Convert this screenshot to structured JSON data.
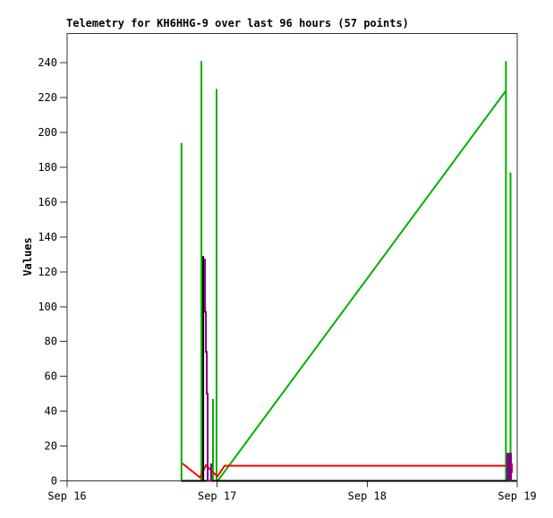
{
  "chart_data": {
    "type": "line",
    "title": "Telemetry for KH6HHG-9 over last 96 hours (57 points)",
    "station": "KH6HHG-9",
    "period_hours": 96,
    "points_count": 57,
    "xlabel": "",
    "ylabel": "Values",
    "grid": false,
    "legend": "none",
    "background": "#ffffff",
    "axis_color": "#333333",
    "xlim_days": [
      0,
      3
    ],
    "ylim": [
      0,
      256.8
    ],
    "x_ticks": [
      {
        "label": "Sep 16",
        "day": 0
      },
      {
        "label": "Sep 17",
        "day": 1
      },
      {
        "label": "Sep 18",
        "day": 2
      },
      {
        "label": "Sep 19",
        "day": 3
      }
    ],
    "y_ticks": [
      0,
      20,
      40,
      60,
      80,
      100,
      120,
      140,
      160,
      180,
      200,
      220,
      240
    ],
    "series": [
      {
        "name": "green",
        "color": "#00b000",
        "width": 2,
        "points": [
          [
            0.762,
            0
          ],
          [
            0.762,
            194
          ],
          [
            0.762,
            0
          ],
          [
            0.895,
            0
          ],
          [
            0.895,
            241
          ],
          [
            0.895,
            0
          ],
          [
            0.972,
            0
          ],
          [
            0.972,
            47
          ],
          [
            0.972,
            0
          ],
          [
            0.996,
            0
          ],
          [
            0.996,
            225
          ],
          [
            0.996,
            0
          ],
          [
            1.004,
            0
          ],
          [
            2.925,
            224
          ],
          [
            2.925,
            241
          ],
          [
            2.925,
            0
          ],
          [
            2.955,
            0
          ],
          [
            2.955,
            177
          ],
          [
            2.955,
            0
          ]
        ]
      },
      {
        "name": "red",
        "color": "#ff0000",
        "width": 2,
        "points": [
          [
            0.769,
            10
          ],
          [
            0.885,
            2
          ],
          [
            0.925,
            9
          ],
          [
            1.002,
            2.5
          ],
          [
            1.05,
            8.7
          ],
          [
            2.922,
            8.7
          ]
        ]
      },
      {
        "name": "red-end-marker",
        "color": "#ff0000",
        "width": 3,
        "points": [
          [
            2.962,
            10
          ],
          [
            2.962,
            4.5
          ]
        ]
      },
      {
        "name": "black",
        "color": "#000000",
        "width": 2,
        "points": [
          [
            0.762,
            0
          ],
          [
            0.907,
            0
          ],
          [
            0.907,
            129
          ],
          [
            0.907,
            0
          ],
          [
            2.946,
            0
          ],
          [
            2.946,
            16
          ],
          [
            2.946,
            0
          ],
          [
            2.995,
            0
          ]
        ]
      },
      {
        "name": "purple",
        "color": "#800080",
        "width": 2,
        "points": [
          [
            0.907,
            127
          ],
          [
            0.919,
            127
          ],
          [
            0.919,
            97
          ],
          [
            0.925,
            97
          ],
          [
            0.925,
            74
          ],
          [
            0.931,
            74
          ],
          [
            0.931,
            50
          ],
          [
            0.937,
            50
          ],
          [
            0.937,
            0
          ],
          [
            0.96,
            0
          ],
          [
            0.96,
            10
          ],
          [
            0.96,
            0
          ]
        ]
      },
      {
        "name": "purple-end-marker",
        "color": "#800080",
        "width": 4,
        "points": [
          [
            2.94,
            0
          ],
          [
            2.94,
            15
          ],
          [
            2.953,
            15
          ],
          [
            2.953,
            0
          ]
        ]
      }
    ]
  }
}
